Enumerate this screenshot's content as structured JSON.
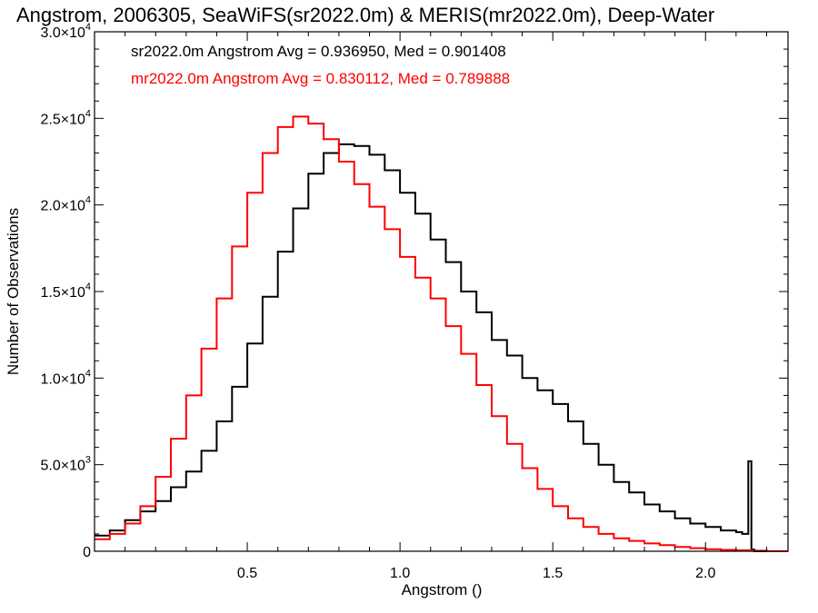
{
  "chart_data": {
    "type": "line",
    "title": "Angstrom, 2006305, SeaWiFS(sr2022.0m) & MERIS(mr2022.0m), Deep-Water",
    "xlabel": "Angstrom ()",
    "ylabel": "Number of Observations",
    "xlim": [
      0.0,
      2.27
    ],
    "ylim": [
      0,
      30000
    ],
    "grid": false,
    "legend_placement": "top-left",
    "x_ticks": [
      {
        "value": 0.5,
        "label": "0.5"
      },
      {
        "value": 1.0,
        "label": "1.0"
      },
      {
        "value": 1.5,
        "label": "1.5"
      },
      {
        "value": 2.0,
        "label": "2.0"
      }
    ],
    "y_ticks": [
      {
        "value": 0,
        "mantissa": "0",
        "exponent": ""
      },
      {
        "value": 5000,
        "mantissa": "5.0×10",
        "exponent": "3"
      },
      {
        "value": 10000,
        "mantissa": "1.0×10",
        "exponent": "4"
      },
      {
        "value": 15000,
        "mantissa": "1.5×10",
        "exponent": "4"
      },
      {
        "value": 20000,
        "mantissa": "2.0×10",
        "exponent": "4"
      },
      {
        "value": 25000,
        "mantissa": "2.5×10",
        "exponent": "4"
      },
      {
        "value": 30000,
        "mantissa": "3.0×10",
        "exponent": "4"
      }
    ],
    "series": [
      {
        "legend": "sr2022.0m Angstrom Avg = 0.936950, Med = 0.901408",
        "color": "#000000",
        "x": [
          0.0,
          0.05,
          0.1,
          0.15,
          0.2,
          0.25,
          0.3,
          0.35,
          0.4,
          0.45,
          0.5,
          0.55,
          0.6,
          0.65,
          0.7,
          0.75,
          0.8,
          0.85,
          0.9,
          0.95,
          1.0,
          1.05,
          1.1,
          1.15,
          1.2,
          1.25,
          1.3,
          1.35,
          1.4,
          1.45,
          1.5,
          1.55,
          1.6,
          1.65,
          1.7,
          1.75,
          1.8,
          1.85,
          1.9,
          1.95,
          2.0,
          2.05,
          2.1,
          2.12,
          2.13,
          2.14,
          2.15,
          2.16,
          2.27
        ],
        "y": [
          900,
          1200,
          1800,
          2300,
          2900,
          3700,
          4600,
          5800,
          7500,
          9500,
          12000,
          14700,
          17300,
          19800,
          21800,
          23000,
          23500,
          23400,
          22900,
          22000,
          20700,
          19500,
          18000,
          16700,
          15000,
          13800,
          12200,
          11300,
          10000,
          9300,
          8500,
          7500,
          6200,
          5000,
          4000,
          3400,
          2700,
          2300,
          1900,
          1600,
          1400,
          1200,
          1100,
          1000,
          1000,
          5200,
          100,
          0,
          0
        ]
      },
      {
        "legend": "mr2022.0m Angstrom Avg = 0.830112, Med = 0.789888",
        "color": "#ff0000",
        "x": [
          0.0,
          0.05,
          0.1,
          0.15,
          0.2,
          0.25,
          0.3,
          0.35,
          0.4,
          0.45,
          0.5,
          0.55,
          0.6,
          0.65,
          0.7,
          0.75,
          0.8,
          0.85,
          0.9,
          0.95,
          1.0,
          1.05,
          1.1,
          1.15,
          1.2,
          1.25,
          1.3,
          1.35,
          1.4,
          1.45,
          1.5,
          1.55,
          1.6,
          1.65,
          1.7,
          1.75,
          1.8,
          1.85,
          1.9,
          1.95,
          2.0,
          2.05,
          2.1,
          2.15,
          2.2,
          2.27
        ],
        "y": [
          700,
          1000,
          1600,
          2600,
          4300,
          6500,
          9000,
          11700,
          14600,
          17600,
          20700,
          23000,
          24500,
          25100,
          24700,
          23800,
          22500,
          21200,
          19900,
          18600,
          17000,
          15800,
          14600,
          13000,
          11400,
          9600,
          7800,
          6200,
          4800,
          3600,
          2600,
          1900,
          1400,
          1000,
          750,
          600,
          450,
          350,
          250,
          180,
          120,
          80,
          50,
          30,
          0,
          0
        ]
      }
    ]
  }
}
